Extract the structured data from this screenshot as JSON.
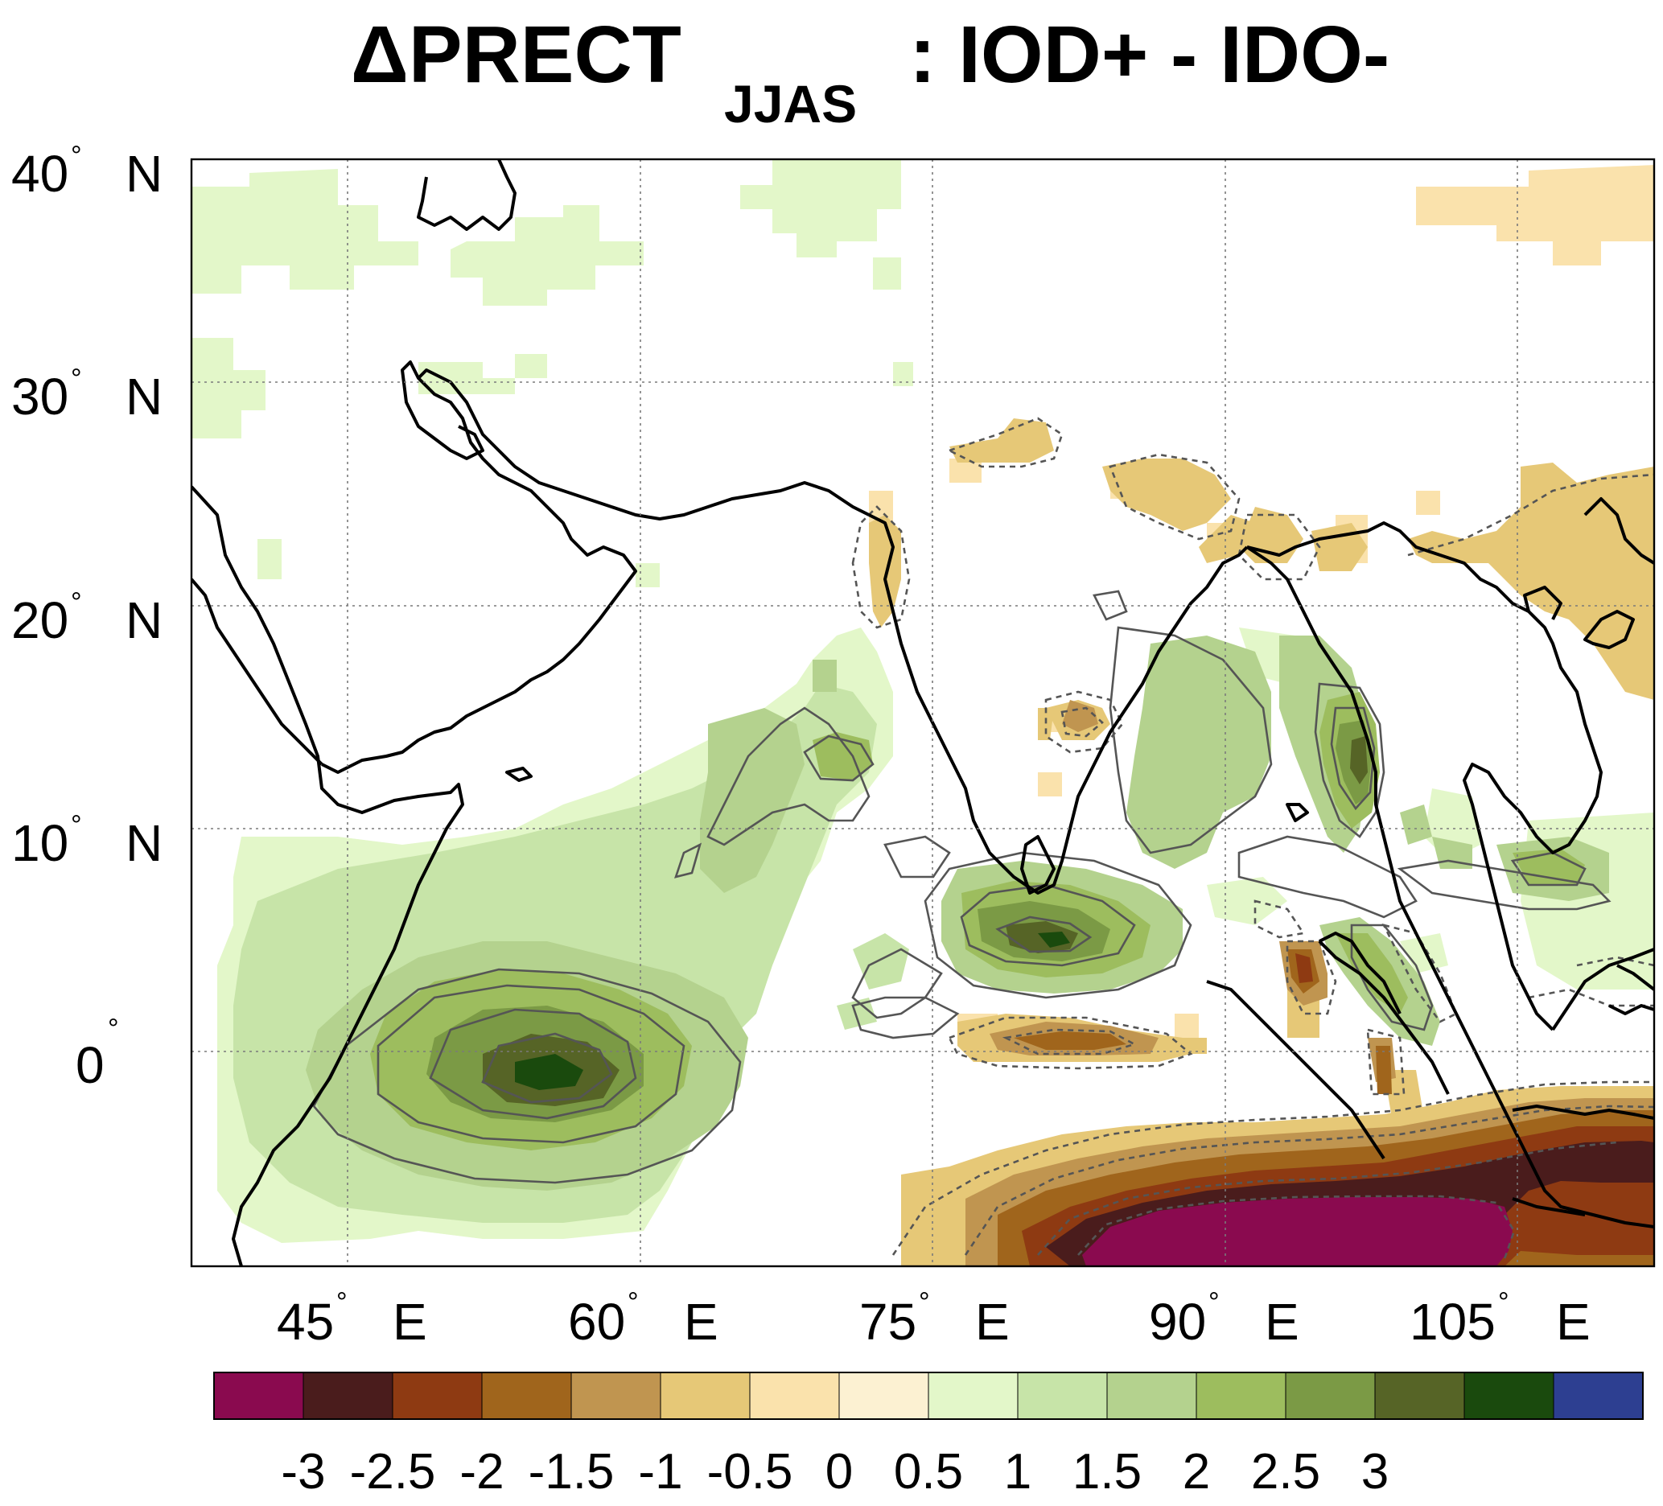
{
  "title": {
    "main": "ΔPRECT",
    "subscript": "JJAS",
    "suffix": ": IOD+ - IDO-"
  },
  "map": {
    "lon_range": [
      35,
      110
    ],
    "lat_range": [
      -10,
      40
    ],
    "lat_ticks": [
      {
        "value": 40,
        "label": "40",
        "suffix": "N"
      },
      {
        "value": 30,
        "label": "30",
        "suffix": "N"
      },
      {
        "value": 20,
        "label": "20",
        "suffix": "N"
      },
      {
        "value": 10,
        "label": "10",
        "suffix": "N"
      },
      {
        "value": 0,
        "label": "0",
        "suffix": ""
      }
    ],
    "lon_ticks": [
      {
        "value": 45,
        "label": "45",
        "suffix": "E"
      },
      {
        "value": 60,
        "label": "60",
        "suffix": "E"
      },
      {
        "value": 75,
        "label": "75",
        "suffix": "E"
      },
      {
        "value": 90,
        "label": "90",
        "suffix": "E"
      },
      {
        "value": 105,
        "label": "105",
        "suffix": "E"
      }
    ],
    "degree_symbol": "°",
    "grid": true
  },
  "colorbar": {
    "colors": [
      "#8a0a4f",
      "#4a1c1c",
      "#8e3a12",
      "#a0651c",
      "#c09550",
      "#e6c877",
      "#fae2ac",
      "#fcf1d2",
      "#e3f7c9",
      "#c7e4a8",
      "#b4d28e",
      "#9dbd5e",
      "#7b9a45",
      "#566426",
      "#1a4a0d",
      "#2d3f91"
    ],
    "labels": [
      "-3",
      "-2.5",
      "-2",
      "-1.5",
      "-1",
      "-0.5",
      "0",
      "0.5",
      "1",
      "1.5",
      "2",
      "2.5",
      "3"
    ]
  }
}
